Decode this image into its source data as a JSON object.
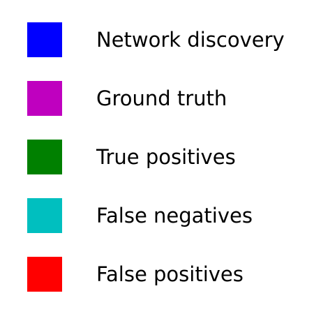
{
  "chart_data": {
    "type": "legend",
    "legend": [
      {
        "label": "Network discovery",
        "color": "#0000ff"
      },
      {
        "label": "Ground truth",
        "color": "#bf00bf"
      },
      {
        "label": "True positives",
        "color": "#008000"
      },
      {
        "label": "False negatives",
        "color": "#00bfbf"
      },
      {
        "label": "False positives",
        "color": "#ff0000"
      }
    ]
  }
}
